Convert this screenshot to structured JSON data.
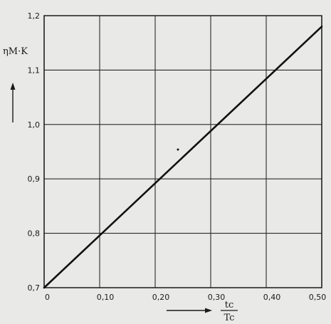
{
  "chart_data": {
    "type": "line",
    "title": "",
    "ylabel": "ηM·K",
    "xlabel": {
      "numerator": "tc",
      "denominator": "Tc"
    },
    "xlim": [
      0,
      0.5
    ],
    "ylim": [
      0.7,
      1.2
    ],
    "grid": true,
    "x_ticks": [
      0,
      0.1,
      0.2,
      0.3,
      0.4,
      0.5
    ],
    "x_tick_labels": [
      "0",
      "0,10",
      "0,20",
      "0,30",
      "0,40",
      "0,50"
    ],
    "y_ticks": [
      0.7,
      0.8,
      0.9,
      1.0,
      1.1,
      1.2
    ],
    "y_tick_labels": [
      "0,7",
      "0,8",
      "0,9",
      "1,0",
      "1,1",
      "1,2"
    ],
    "series": [
      {
        "x": [
          0,
          0.5
        ],
        "y": [
          0.7,
          1.18
        ]
      }
    ],
    "colors": {
      "line": "#111111",
      "grid": "#2a2a2a",
      "background": "#e9e9e7"
    }
  }
}
